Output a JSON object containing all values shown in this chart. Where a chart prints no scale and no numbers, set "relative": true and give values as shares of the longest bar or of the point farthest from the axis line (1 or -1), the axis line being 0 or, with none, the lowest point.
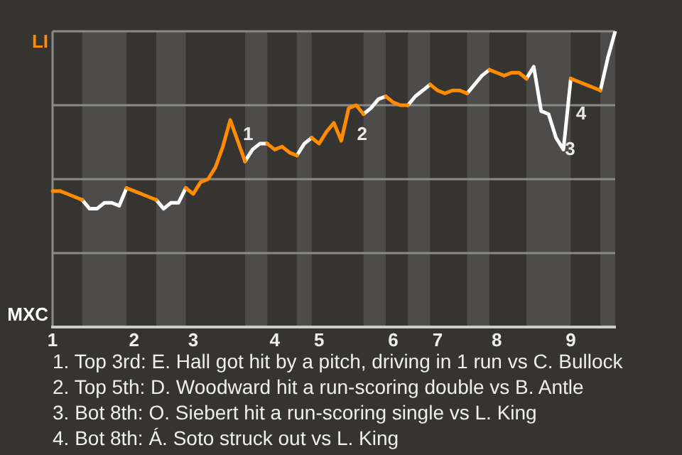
{
  "chart_data": {
    "type": "line",
    "relative": true,
    "grid": "y",
    "legend": false,
    "marker": "none",
    "line_style": "solid",
    "categories": [
      "1",
      null,
      null,
      null,
      null,
      null,
      null,
      null,
      null,
      null,
      null,
      "2",
      null,
      null,
      null,
      null,
      null,
      null,
      null,
      "3",
      null,
      null,
      null,
      null,
      null,
      null,
      null,
      null,
      null,
      null,
      "4",
      null,
      null,
      null,
      null,
      null,
      "5",
      null,
      null,
      null,
      null,
      null,
      null,
      null,
      null,
      null,
      "6",
      null,
      null,
      null,
      null,
      null,
      "7",
      null,
      null,
      null,
      null,
      null,
      null,
      null,
      "8",
      null,
      null,
      null,
      null,
      null,
      null,
      null,
      null,
      null,
      "9",
      null,
      null,
      null,
      null,
      null,
      null
    ],
    "series": [
      {
        "color": "#ff8c00",
        "values": [
          0.46,
          0.46,
          0.45,
          0.44,
          0.43,
          null,
          null,
          null,
          null,
          null,
          0.47,
          0.46,
          0.45,
          0.44,
          0.43,
          null,
          null,
          null,
          0.47,
          0.45,
          0.49,
          0.5,
          0.54,
          0.61,
          0.7,
          0.63,
          0.56,
          null,
          null,
          0.62,
          0.6,
          0.61,
          0.59,
          0.58,
          null,
          0.64,
          0.62,
          0.66,
          0.69,
          0.63,
          0.74,
          0.75,
          0.72,
          null,
          null,
          0.78,
          0.76,
          0.75,
          0.75,
          null,
          null,
          0.82,
          0.8,
          0.79,
          0.8,
          0.8,
          0.79,
          null,
          null,
          0.87,
          0.86,
          0.85,
          0.86,
          0.86,
          0.84,
          null,
          null,
          null,
          null,
          null,
          0.84,
          0.83,
          0.82,
          0.81,
          0.8,
          null,
          null
        ]
      },
      {
        "color": "#ffffff",
        "values": [
          null,
          null,
          null,
          null,
          0.43,
          0.4,
          0.4,
          0.42,
          0.42,
          0.41,
          0.47,
          null,
          null,
          null,
          0.43,
          0.4,
          0.42,
          0.42,
          0.47,
          null,
          null,
          null,
          null,
          null,
          null,
          null,
          0.56,
          0.6,
          0.62,
          0.62,
          null,
          null,
          null,
          0.58,
          0.62,
          0.64,
          null,
          null,
          null,
          null,
          null,
          null,
          0.72,
          0.74,
          0.77,
          0.78,
          null,
          null,
          0.75,
          0.78,
          0.8,
          0.82,
          null,
          null,
          null,
          null,
          0.79,
          0.82,
          0.85,
          0.87,
          null,
          null,
          null,
          null,
          0.84,
          0.88,
          0.73,
          0.72,
          0.64,
          0.6,
          0.84,
          null,
          null,
          null,
          0.8,
          0.91,
          1
        ]
      }
    ],
    "annotations": [
      "1",
      "2",
      "3",
      "4",
      "LI",
      "MXC",
      "1. Top 3rd: E. Hall got hit by a pitch, driving in 1 run vs C. Bullock",
      "2. Top 5th: D. Woodward hit a run-scoring double vs B. Antle",
      "3. Bot 8th: O. Siebert hit a run-scoring single vs L. King",
      "4. Bot 8th: Á. Soto struck out vs L. King"
    ]
  }
}
